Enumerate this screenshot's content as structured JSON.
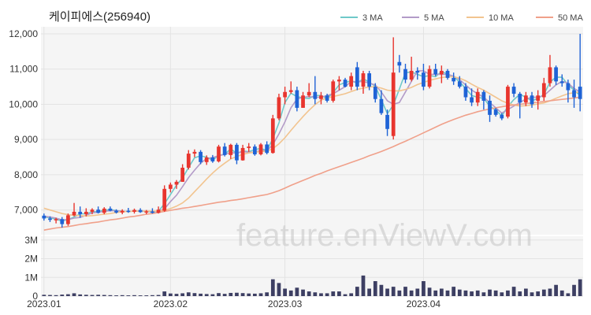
{
  "chart_data": {
    "type": "candlestick",
    "title": "케이피에스(256940)",
    "watermark": "feature.enViewV.com",
    "legend": {
      "placement": "top-right",
      "items": [
        {
          "label": "3 MA",
          "color": "#6fc9c9"
        },
        {
          "label": "5 MA",
          "color": "#b39bc8"
        },
        {
          "label": "10 MA",
          "color": "#f2c48f"
        },
        {
          "label": "50 MA",
          "color": "#f0a08a"
        }
      ]
    },
    "colors": {
      "up": "#e8352e",
      "down": "#1f63d6",
      "volume": "#3d3f63",
      "grid": "#e3e3e3",
      "panel": "#f5f5f5"
    },
    "price_axis": {
      "ylim": [
        6300,
        12200
      ],
      "ticks": [
        7000,
        8000,
        9000,
        10000,
        11000,
        12000
      ],
      "tick_labels": [
        "7,000",
        "8,000",
        "9,000",
        "10,000",
        "11,000",
        "12,000"
      ]
    },
    "volume_axis": {
      "ylim": [
        0,
        3200000
      ],
      "ticks": [
        0,
        1000000,
        2000000,
        3000000
      ],
      "tick_labels": [
        "0",
        "1M",
        "2M",
        "3M"
      ]
    },
    "x_tick_labels": [
      {
        "label": "2023.01",
        "index": 0
      },
      {
        "label": "2023.02",
        "index": 21
      },
      {
        "label": "2023.03",
        "index": 40
      },
      {
        "label": "2023.04",
        "index": 63
      }
    ],
    "candles": [
      [
        6840,
        6900,
        6700,
        6760
      ],
      [
        6760,
        6820,
        6660,
        6720
      ],
      [
        6720,
        6780,
        6620,
        6740
      ],
      [
        6740,
        6800,
        6500,
        6600
      ],
      [
        6600,
        6900,
        6550,
        6850
      ],
      [
        6850,
        7200,
        6820,
        6950
      ],
      [
        6950,
        7100,
        6780,
        6880
      ],
      [
        6880,
        7050,
        6820,
        6950
      ],
      [
        6950,
        7050,
        6880,
        7010
      ],
      [
        7010,
        7100,
        6900,
        6920
      ],
      [
        6920,
        7080,
        6880,
        7040
      ],
      [
        7040,
        7100,
        6960,
        6980
      ],
      [
        6980,
        7020,
        6900,
        6930
      ],
      [
        6930,
        7020,
        6880,
        6980
      ],
      [
        6980,
        7060,
        6920,
        6950
      ],
      [
        6950,
        7040,
        6900,
        7000
      ],
      [
        7000,
        7050,
        6920,
        6940
      ],
      [
        6940,
        7000,
        6880,
        6960
      ],
      [
        6960,
        7050,
        6900,
        6920
      ],
      [
        6920,
        7100,
        6900,
        7010
      ],
      [
        6980,
        7700,
        6950,
        7600
      ],
      [
        7600,
        7780,
        7500,
        7720
      ],
      [
        7720,
        7850,
        7600,
        7800
      ],
      [
        7800,
        8300,
        7800,
        8200
      ],
      [
        8200,
        8700,
        8150,
        8600
      ],
      [
        8600,
        8720,
        8500,
        8650
      ],
      [
        8650,
        8700,
        8300,
        8360
      ],
      [
        8360,
        8550,
        8280,
        8490
      ],
      [
        8490,
        8560,
        8340,
        8380
      ],
      [
        8380,
        8850,
        8350,
        8800
      ],
      [
        8800,
        8900,
        8520,
        8560
      ],
      [
        8560,
        8880,
        8450,
        8850
      ],
      [
        8850,
        8900,
        8300,
        8410
      ],
      [
        8410,
        8850,
        8400,
        8760
      ],
      [
        8760,
        8900,
        8650,
        8800
      ],
      [
        8800,
        8860,
        8540,
        8580
      ],
      [
        8580,
        8900,
        8550,
        8860
      ],
      [
        8860,
        8950,
        8580,
        8620
      ],
      [
        8620,
        9700,
        8600,
        9600
      ],
      [
        9600,
        10300,
        9550,
        10200
      ],
      [
        10200,
        10500,
        10000,
        10350
      ],
      [
        10350,
        10650,
        10300,
        10400
      ],
      [
        10400,
        10500,
        9800,
        9900
      ],
      [
        9900,
        10350,
        9900,
        10250
      ],
      [
        10250,
        10600,
        10200,
        10350
      ],
      [
        10350,
        10800,
        10000,
        10150
      ],
      [
        10150,
        10350,
        10000,
        10250
      ],
      [
        10250,
        10300,
        10050,
        10100
      ],
      [
        10100,
        10700,
        10050,
        10650
      ],
      [
        10650,
        10800,
        10400,
        10700
      ],
      [
        10700,
        10750,
        10480,
        10500
      ],
      [
        10500,
        10900,
        10400,
        10800
      ],
      [
        11050,
        11200,
        10400,
        10500
      ],
      [
        10500,
        10950,
        10300,
        10880
      ],
      [
        10880,
        10950,
        10400,
        10500
      ],
      [
        10500,
        10600,
        10050,
        10150
      ],
      [
        10150,
        10400,
        9700,
        9750
      ],
      [
        9700,
        9850,
        9100,
        9300
      ],
      [
        9100,
        11900,
        9000,
        10900
      ],
      [
        11200,
        11400,
        10900,
        11100
      ],
      [
        11000,
        11150,
        10600,
        10700
      ],
      [
        10700,
        11350,
        10650,
        10950
      ],
      [
        10950,
        11050,
        10700,
        10900
      ],
      [
        10900,
        11150,
        10400,
        10500
      ],
      [
        10500,
        11100,
        10450,
        11000
      ],
      [
        11000,
        11150,
        10800,
        10850
      ],
      [
        10850,
        11100,
        10600,
        10950
      ],
      [
        10950,
        11000,
        10700,
        10750
      ],
      [
        10750,
        10900,
        10550,
        10650
      ],
      [
        10650,
        10800,
        10450,
        10500
      ],
      [
        10500,
        10600,
        10100,
        10200
      ],
      [
        10200,
        10450,
        9950,
        10050
      ],
      [
        10050,
        10450,
        9950,
        10350
      ],
      [
        10350,
        10400,
        9850,
        10100
      ],
      [
        10100,
        10250,
        9500,
        9700
      ],
      [
        9850,
        9900,
        9650,
        9700
      ],
      [
        9700,
        9750,
        9550,
        9600
      ],
      [
        9650,
        10550,
        9600,
        10500
      ],
      [
        10500,
        10600,
        10200,
        10300
      ],
      [
        10300,
        10350,
        9600,
        10050
      ],
      [
        10050,
        10350,
        9950,
        10250
      ],
      [
        10250,
        10350,
        9900,
        10000
      ],
      [
        10100,
        10400,
        9850,
        10250
      ],
      [
        10200,
        10750,
        10100,
        10600
      ],
      [
        10600,
        11400,
        10500,
        11050
      ],
      [
        11050,
        11100,
        10550,
        10650
      ],
      [
        10650,
        10850,
        10500,
        10600
      ],
      [
        10600,
        10700,
        10050,
        10400
      ],
      [
        10400,
        10700,
        9900,
        10200
      ],
      [
        10500,
        12000,
        9800,
        10150
      ]
    ],
    "ma": {
      "3 MA": [
        6800,
        6780,
        6740,
        6687,
        6730,
        6800,
        6893,
        6893,
        6947,
        6960,
        6990,
        7011,
        6983,
        6963,
        6953,
        6976,
        6963,
        6967,
        6940,
        6963,
        7177,
        7443,
        7707,
        7907,
        8207,
        8483,
        8537,
        8500,
        8410,
        8557,
        8580,
        8737,
        8607,
        8673,
        8657,
        8713,
        8747,
        8687,
        9027,
        9473,
        10050,
        10317,
        10217,
        10183,
        10167,
        10250,
        10250,
        10167,
        10333,
        10550,
        10617,
        10667,
        10600,
        10727,
        10627,
        10510,
        10133,
        9733,
        9983,
        10433,
        10900,
        10917,
        10850,
        10783,
        10817,
        10783,
        10933,
        10850,
        10783,
        10633,
        10450,
        10250,
        10200,
        10167,
        9950,
        9833,
        9667,
        9933,
        10133,
        10283,
        10200,
        10100,
        10167,
        10283,
        10633,
        10767,
        10767,
        10550,
        10400,
        10250
      ],
      "5 MA": [
        6820,
        6800,
        6770,
        6720,
        6730,
        6770,
        6790,
        6850,
        6920,
        6940,
        6960,
        6980,
        6980,
        6960,
        6960,
        6970,
        6970,
        6970,
        6960,
        6960,
        7030,
        7240,
        7420,
        7660,
        7920,
        8130,
        8330,
        8460,
        8490,
        8540,
        8580,
        8630,
        8610,
        8660,
        8640,
        8640,
        8690,
        8680,
        8860,
        9160,
        9500,
        9900,
        10150,
        10200,
        10220,
        10200,
        10200,
        10250,
        10300,
        10400,
        10500,
        10650,
        10640,
        10650,
        10600,
        10550,
        10350,
        10100,
        10000,
        10050,
        10350,
        10650,
        10950,
        10950,
        10850,
        10850,
        10850,
        10850,
        10800,
        10700,
        10550,
        10400,
        10300,
        10200,
        10050,
        9900,
        9750,
        9850,
        9950,
        10050,
        10150,
        10200,
        10200,
        10250,
        10400,
        10550,
        10650,
        10600,
        10450,
        10350
      ],
      "10 MA": [
        7050,
        7000,
        6950,
        6900,
        6870,
        6850,
        6840,
        6830,
        6840,
        6860,
        6880,
        6900,
        6930,
        6950,
        6960,
        6965,
        6970,
        6970,
        6970,
        6965,
        6990,
        7040,
        7110,
        7200,
        7340,
        7520,
        7700,
        7880,
        8050,
        8200,
        8330,
        8450,
        8520,
        8580,
        8620,
        8640,
        8660,
        8670,
        8740,
        8880,
        9050,
        9260,
        9460,
        9650,
        9830,
        9990,
        10120,
        10180,
        10220,
        10260,
        10300,
        10360,
        10420,
        10460,
        10490,
        10500,
        10460,
        10400,
        10380,
        10380,
        10420,
        10480,
        10560,
        10620,
        10680,
        10720,
        10760,
        10780,
        10780,
        10740,
        10670,
        10570,
        10480,
        10400,
        10300,
        10200,
        10100,
        10030,
        9980,
        9950,
        9960,
        9980,
        10010,
        10040,
        10100,
        10170,
        10240,
        10300,
        10330,
        10350
      ],
      "50 MA": [
        6430,
        6460,
        6490,
        6510,
        6530,
        6560,
        6590,
        6610,
        6640,
        6660,
        6690,
        6720,
        6740,
        6770,
        6800,
        6820,
        6850,
        6880,
        6900,
        6930,
        6960,
        6990,
        7020,
        7050,
        7070,
        7100,
        7130,
        7160,
        7190,
        7220,
        7240,
        7270,
        7290,
        7320,
        7350,
        7380,
        7410,
        7440,
        7490,
        7550,
        7620,
        7700,
        7770,
        7840,
        7910,
        7980,
        8040,
        8110,
        8170,
        8230,
        8290,
        8350,
        8410,
        8470,
        8540,
        8600,
        8660,
        8730,
        8800,
        8880,
        8950,
        9030,
        9110,
        9190,
        9270,
        9350,
        9430,
        9500,
        9570,
        9630,
        9690,
        9740,
        9790,
        9830,
        9870,
        9900,
        9930,
        9960,
        9980,
        10000,
        10020,
        10040,
        10060,
        10080,
        10100,
        10120,
        10140,
        10160,
        10180,
        10200
      ]
    },
    "volumes": [
      70000,
      60000,
      50000,
      80000,
      100000,
      150000,
      90000,
      70000,
      60000,
      70000,
      60000,
      50000,
      40000,
      50000,
      40000,
      50000,
      40000,
      40000,
      50000,
      60000,
      250000,
      140000,
      120000,
      150000,
      200000,
      160000,
      130000,
      110000,
      100000,
      160000,
      120000,
      170000,
      180000,
      160000,
      140000,
      130000,
      150000,
      200000,
      900000,
      700000,
      400000,
      300000,
      450000,
      350000,
      250000,
      200000,
      150000,
      150000,
      250000,
      250000,
      100000,
      150000,
      500000,
      1100000,
      400000,
      800000,
      600000,
      400000,
      500000,
      300000,
      500000,
      300000,
      400000,
      800000,
      450000,
      300000,
      400000,
      300000,
      500000,
      350000,
      300000,
      250000,
      300000,
      200000,
      350000,
      300000,
      200000,
      300000,
      500000,
      250000,
      400000,
      200000,
      250000,
      350000,
      400000,
      600000,
      300000,
      150000,
      600000,
      900000
    ]
  }
}
